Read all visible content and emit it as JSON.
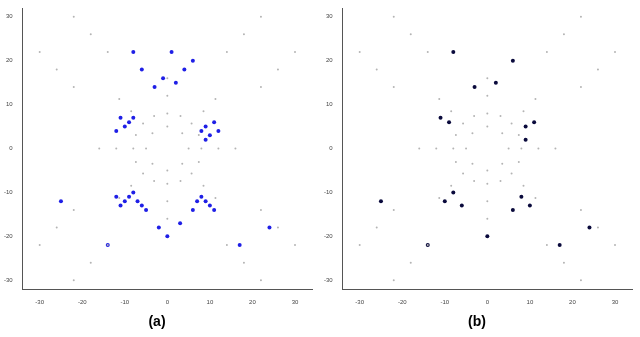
{
  "chart_data": [
    {
      "type": "scatter",
      "title": "(a)",
      "xlim": [
        -34,
        34
      ],
      "xticks": [
        -30,
        -20,
        -10,
        0,
        10,
        20,
        30
      ],
      "ylim": [
        -32,
        32
      ],
      "yticks": [
        -30,
        -20,
        -10,
        0,
        10,
        20,
        30
      ],
      "grid": false,
      "marker": "circle",
      "series": [
        {
          "color": "#b4b4b4",
          "values": [
            [
              5,
              0
            ],
            [
              3.5,
              3.5
            ],
            [
              0,
              5
            ],
            [
              -3.5,
              3.5
            ],
            [
              -5,
              0
            ],
            [
              -3.5,
              -3.5
            ],
            [
              0,
              -5
            ],
            [
              3.5,
              -3.5
            ],
            [
              8,
              0
            ],
            [
              7.4,
              3.1
            ],
            [
              5.7,
              5.7
            ],
            [
              3.1,
              7.4
            ],
            [
              0,
              8
            ],
            [
              -3.1,
              7.4
            ],
            [
              -5.7,
              5.7
            ],
            [
              -7.4,
              3.1
            ],
            [
              -8,
              0
            ],
            [
              -7.4,
              -3.1
            ],
            [
              -5.7,
              -5.7
            ],
            [
              -3.1,
              -7.4
            ],
            [
              0,
              -8
            ],
            [
              3.1,
              -7.4
            ],
            [
              5.7,
              -5.7
            ],
            [
              7.4,
              -3.1
            ],
            [
              12,
              0
            ],
            [
              8.5,
              8.5
            ],
            [
              0,
              12
            ],
            [
              -8.5,
              8.5
            ],
            [
              -12,
              0
            ],
            [
              -8.5,
              -8.5
            ],
            [
              0,
              -12
            ],
            [
              8.5,
              -8.5
            ],
            [
              11.3,
              11.3
            ],
            [
              -11.3,
              11.3
            ],
            [
              -11.3,
              -11.3
            ],
            [
              11.3,
              -11.3
            ],
            [
              16,
              0
            ],
            [
              0,
              16
            ],
            [
              -16,
              0
            ],
            [
              0,
              -16
            ],
            [
              14,
              22
            ],
            [
              18,
              26
            ],
            [
              22,
              30
            ],
            [
              22,
              14
            ],
            [
              26,
              18
            ],
            [
              30,
              22
            ],
            [
              -14,
              22
            ],
            [
              -18,
              26
            ],
            [
              -22,
              30
            ],
            [
              -22,
              14
            ],
            [
              -26,
              18
            ],
            [
              -30,
              22
            ],
            [
              -14,
              -22
            ],
            [
              -18,
              -26
            ],
            [
              -22,
              -30
            ],
            [
              -22,
              -14
            ],
            [
              -26,
              -18
            ],
            [
              -30,
              -22
            ],
            [
              14,
              -22
            ],
            [
              18,
              -26
            ],
            [
              22,
              -30
            ],
            [
              22,
              -14
            ],
            [
              26,
              -18
            ],
            [
              30,
              -22
            ]
          ]
        },
        {
          "color": "#1f1fe6",
          "values": [
            [
              -10,
              -12
            ],
            [
              -9,
              -11
            ],
            [
              -8,
              -10
            ],
            [
              -11,
              -13
            ],
            [
              -7,
              -12
            ],
            [
              -6,
              -13
            ],
            [
              -5,
              -14
            ],
            [
              -12,
              -11
            ],
            [
              8,
              -11
            ],
            [
              9,
              -12
            ],
            [
              10,
              -13
            ],
            [
              7,
              -12
            ],
            [
              6,
              -14
            ],
            [
              11,
              -14
            ],
            [
              8,
              4
            ],
            [
              9,
              5
            ],
            [
              10,
              3
            ],
            [
              11,
              6
            ],
            [
              9,
              2
            ],
            [
              12,
              4
            ],
            [
              -9,
              6
            ],
            [
              -10,
              5
            ],
            [
              -11,
              7
            ],
            [
              -8,
              7
            ],
            [
              -12,
              4
            ],
            [
              -3,
              14
            ],
            [
              -1,
              16
            ],
            [
              2,
              15
            ],
            [
              4,
              18
            ],
            [
              6,
              20
            ],
            [
              -6,
              18
            ],
            [
              -8,
              22
            ],
            [
              1,
              22
            ],
            [
              -2,
              -18
            ],
            [
              0,
              -20
            ],
            [
              3,
              -17
            ],
            [
              -14,
              -22
            ],
            [
              -25,
              -12
            ],
            [
              24,
              -18
            ],
            [
              17,
              -22
            ]
          ]
        }
      ]
    },
    {
      "type": "scatter",
      "title": "(b)",
      "xlim": [
        -34,
        34
      ],
      "xticks": [
        -30,
        -20,
        -10,
        0,
        10,
        20,
        30
      ],
      "ylim": [
        -32,
        32
      ],
      "yticks": [
        -30,
        -20,
        -10,
        0,
        10,
        20,
        30
      ],
      "grid": false,
      "marker": "circle",
      "series": [
        {
          "color": "#b4b4b4",
          "values": [
            [
              5,
              0
            ],
            [
              3.5,
              3.5
            ],
            [
              0,
              5
            ],
            [
              -3.5,
              3.5
            ],
            [
              -5,
              0
            ],
            [
              -3.5,
              -3.5
            ],
            [
              0,
              -5
            ],
            [
              3.5,
              -3.5
            ],
            [
              8,
              0
            ],
            [
              7.4,
              3.1
            ],
            [
              5.7,
              5.7
            ],
            [
              3.1,
              7.4
            ],
            [
              0,
              8
            ],
            [
              -3.1,
              7.4
            ],
            [
              -5.7,
              5.7
            ],
            [
              -7.4,
              3.1
            ],
            [
              -8,
              0
            ],
            [
              -7.4,
              -3.1
            ],
            [
              -5.7,
              -5.7
            ],
            [
              -3.1,
              -7.4
            ],
            [
              0,
              -8
            ],
            [
              3.1,
              -7.4
            ],
            [
              5.7,
              -5.7
            ],
            [
              7.4,
              -3.1
            ],
            [
              12,
              0
            ],
            [
              8.5,
              8.5
            ],
            [
              0,
              12
            ],
            [
              -8.5,
              8.5
            ],
            [
              -12,
              0
            ],
            [
              -8.5,
              -8.5
            ],
            [
              0,
              -12
            ],
            [
              8.5,
              -8.5
            ],
            [
              11.3,
              11.3
            ],
            [
              -11.3,
              11.3
            ],
            [
              -11.3,
              -11.3
            ],
            [
              11.3,
              -11.3
            ],
            [
              16,
              0
            ],
            [
              0,
              16
            ],
            [
              -16,
              0
            ],
            [
              0,
              -16
            ],
            [
              14,
              22
            ],
            [
              18,
              26
            ],
            [
              22,
              30
            ],
            [
              22,
              14
            ],
            [
              26,
              18
            ],
            [
              30,
              22
            ],
            [
              -14,
              22
            ],
            [
              -18,
              26
            ],
            [
              -22,
              30
            ],
            [
              -22,
              14
            ],
            [
              -26,
              18
            ],
            [
              -30,
              22
            ],
            [
              -14,
              -22
            ],
            [
              -18,
              -26
            ],
            [
              -22,
              -30
            ],
            [
              -22,
              -14
            ],
            [
              -26,
              -18
            ],
            [
              -30,
              -22
            ],
            [
              14,
              -22
            ],
            [
              18,
              -26
            ],
            [
              22,
              -30
            ],
            [
              22,
              -14
            ],
            [
              26,
              -18
            ],
            [
              30,
              -22
            ]
          ]
        },
        {
          "color": "#0a0a3c",
          "values": [
            [
              -10,
              -12
            ],
            [
              -8,
              -10
            ],
            [
              -6,
              -13
            ],
            [
              8,
              -11
            ],
            [
              10,
              -13
            ],
            [
              6,
              -14
            ],
            [
              9,
              5
            ],
            [
              11,
              6
            ],
            [
              9,
              2
            ],
            [
              -9,
              6
            ],
            [
              -11,
              7
            ],
            [
              -3,
              14
            ],
            [
              2,
              15
            ],
            [
              6,
              20
            ],
            [
              -8,
              22
            ],
            [
              0,
              -20
            ],
            [
              -14,
              -22
            ],
            [
              -25,
              -12
            ],
            [
              24,
              -18
            ],
            [
              17,
              -22
            ]
          ]
        }
      ]
    }
  ]
}
